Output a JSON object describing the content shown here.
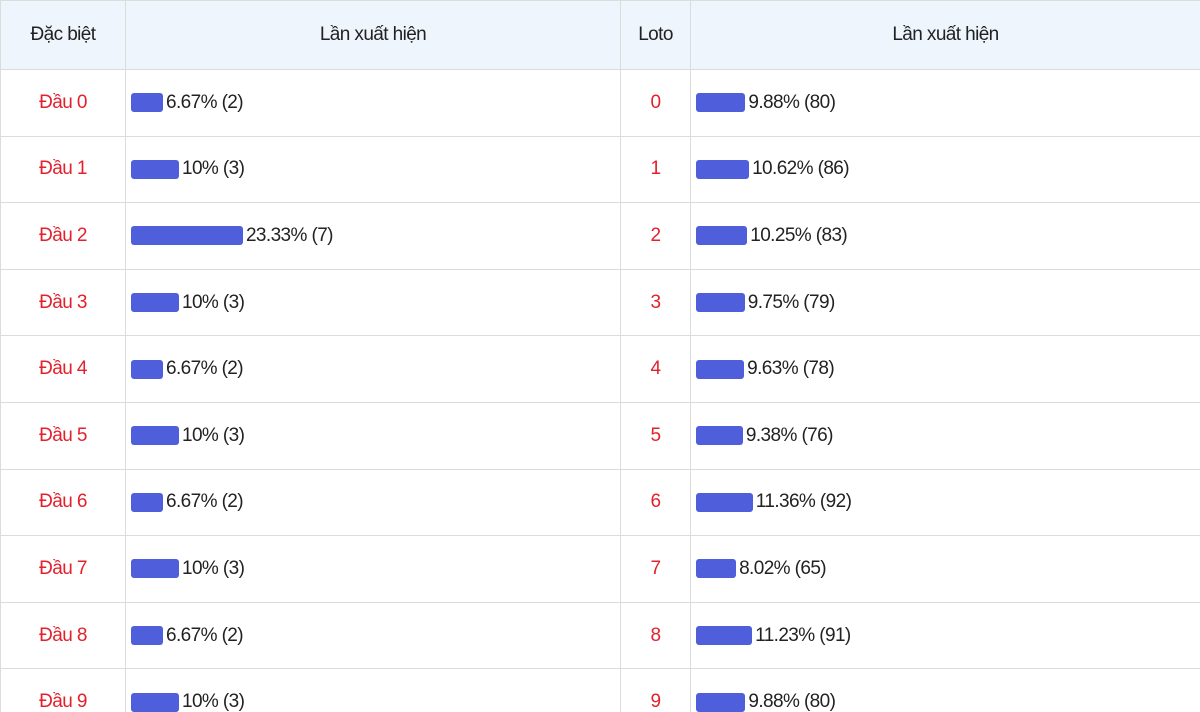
{
  "table": {
    "headers": [
      "Đặc biệt",
      "Lần xuất hiện",
      "Loto",
      "Lần xuất hiện"
    ],
    "rows": [
      {
        "head": "Đầu 0",
        "head_bar": {
          "value": 6.67,
          "label": "6.67% (2)"
        },
        "loto": "0",
        "loto_bar": {
          "value": 9.88,
          "label": "9.88% (80)"
        }
      },
      {
        "head": "Đầu 1",
        "head_bar": {
          "value": 10,
          "label": "10% (3)"
        },
        "loto": "1",
        "loto_bar": {
          "value": 10.62,
          "label": "10.62% (86)"
        }
      },
      {
        "head": "Đầu 2",
        "head_bar": {
          "value": 23.33,
          "label": "23.33% (7)"
        },
        "loto": "2",
        "loto_bar": {
          "value": 10.25,
          "label": "10.25% (83)"
        }
      },
      {
        "head": "Đầu 3",
        "head_bar": {
          "value": 10,
          "label": "10% (3)"
        },
        "loto": "3",
        "loto_bar": {
          "value": 9.75,
          "label": "9.75% (79)"
        }
      },
      {
        "head": "Đầu 4",
        "head_bar": {
          "value": 6.67,
          "label": "6.67% (2)"
        },
        "loto": "4",
        "loto_bar": {
          "value": 9.63,
          "label": "9.63% (78)"
        }
      },
      {
        "head": "Đầu 5",
        "head_bar": {
          "value": 10,
          "label": "10% (3)"
        },
        "loto": "5",
        "loto_bar": {
          "value": 9.38,
          "label": "9.38% (76)"
        }
      },
      {
        "head": "Đầu 6",
        "head_bar": {
          "value": 6.67,
          "label": "6.67% (2)"
        },
        "loto": "6",
        "loto_bar": {
          "value": 11.36,
          "label": "11.36% (92)"
        }
      },
      {
        "head": "Đầu 7",
        "head_bar": {
          "value": 10,
          "label": "10% (3)"
        },
        "loto": "7",
        "loto_bar": {
          "value": 8.02,
          "label": "8.02% (65)"
        }
      },
      {
        "head": "Đầu 8",
        "head_bar": {
          "value": 6.67,
          "label": "6.67% (2)"
        },
        "loto": "8",
        "loto_bar": {
          "value": 11.23,
          "label": "11.23% (91)"
        }
      },
      {
        "head": "Đầu 9",
        "head_bar": {
          "value": 10,
          "label": "10% (3)"
        },
        "loto": "9",
        "loto_bar": {
          "value": 9.88,
          "label": "9.88% (80)"
        }
      }
    ]
  }
}
